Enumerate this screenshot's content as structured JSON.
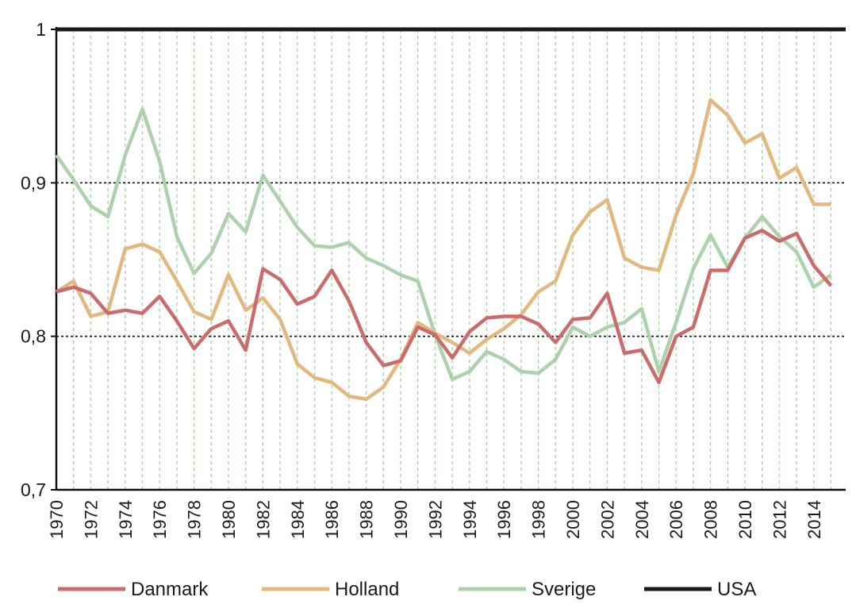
{
  "chart_data": {
    "type": "line",
    "title": "",
    "xlabel": "",
    "ylabel": "",
    "ylim": [
      0.7,
      1.0
    ],
    "xlim": [
      1970,
      2015
    ],
    "yticks": [
      0.7,
      0.8,
      0.9,
      1.0
    ],
    "ytick_labels": [
      "0,7",
      "0,8",
      "0,9",
      "1"
    ],
    "xtick_labels": [
      "1970",
      "1972",
      "1974",
      "1976",
      "1978",
      "1980",
      "1982",
      "1984",
      "1986",
      "1988",
      "1990",
      "1992",
      "1994",
      "1996",
      "1998",
      "2000",
      "2002",
      "2004",
      "2006",
      "2008",
      "2010",
      "2012",
      "2014"
    ],
    "grid": {
      "horizontal": "dotted at 0,8 and 0,9",
      "vertical": "dashed green every year"
    },
    "legend_position": "bottom",
    "x": [
      1970,
      1971,
      1972,
      1973,
      1974,
      1975,
      1976,
      1977,
      1978,
      1979,
      1980,
      1981,
      1982,
      1983,
      1984,
      1985,
      1986,
      1987,
      1988,
      1989,
      1990,
      1991,
      1992,
      1993,
      1994,
      1995,
      1996,
      1997,
      1998,
      1999,
      2000,
      2001,
      2002,
      2003,
      2004,
      2005,
      2006,
      2007,
      2008,
      2009,
      2010,
      2011,
      2012,
      2013,
      2014,
      2015
    ],
    "series": [
      {
        "name": "Danmark",
        "color": "#cc6b6b",
        "values": [
          0.829,
          0.832,
          0.828,
          0.815,
          0.817,
          0.815,
          0.826,
          0.81,
          0.792,
          0.805,
          0.81,
          0.791,
          0.844,
          0.837,
          0.821,
          0.826,
          0.843,
          0.823,
          0.796,
          0.781,
          0.784,
          0.806,
          0.801,
          0.786,
          0.803,
          0.812,
          0.813,
          0.813,
          0.808,
          0.796,
          0.811,
          0.812,
          0.828,
          0.789,
          0.791,
          0.77,
          0.8,
          0.806,
          0.843,
          0.843,
          0.864,
          0.869,
          0.862,
          0.867,
          0.846,
          0.833
        ]
      },
      {
        "name": "Holland",
        "color": "#e2b87e",
        "values": [
          0.829,
          0.836,
          0.813,
          0.816,
          0.857,
          0.86,
          0.855,
          0.836,
          0.816,
          0.811,
          0.84,
          0.817,
          0.825,
          0.811,
          0.782,
          0.773,
          0.77,
          0.761,
          0.759,
          0.767,
          0.785,
          0.809,
          0.802,
          0.796,
          0.789,
          0.798,
          0.805,
          0.814,
          0.829,
          0.836,
          0.866,
          0.881,
          0.889,
          0.851,
          0.845,
          0.843,
          0.879,
          0.906,
          0.954,
          0.944,
          0.926,
          0.932,
          0.903,
          0.91,
          0.886,
          0.886
        ]
      },
      {
        "name": "Sverige",
        "color": "#aed1ad",
        "values": [
          0.918,
          0.902,
          0.885,
          0.878,
          0.918,
          0.948,
          0.914,
          0.865,
          0.841,
          0.854,
          0.88,
          0.868,
          0.905,
          0.888,
          0.871,
          0.859,
          0.858,
          0.861,
          0.851,
          0.846,
          0.84,
          0.836,
          0.801,
          0.772,
          0.777,
          0.79,
          0.785,
          0.777,
          0.776,
          0.785,
          0.806,
          0.8,
          0.806,
          0.809,
          0.818,
          0.777,
          0.809,
          0.844,
          0.866,
          0.845,
          0.864,
          0.878,
          0.865,
          0.855,
          0.832,
          0.84
        ]
      },
      {
        "name": "USA",
        "color": "#1a1a1a",
        "values": [
          1,
          1,
          1,
          1,
          1,
          1,
          1,
          1,
          1,
          1,
          1,
          1,
          1,
          1,
          1,
          1,
          1,
          1,
          1,
          1,
          1,
          1,
          1,
          1,
          1,
          1,
          1,
          1,
          1,
          1,
          1,
          1,
          1,
          1,
          1,
          1,
          1,
          1,
          1,
          1,
          1,
          1,
          1,
          1,
          1,
          1
        ]
      }
    ]
  }
}
